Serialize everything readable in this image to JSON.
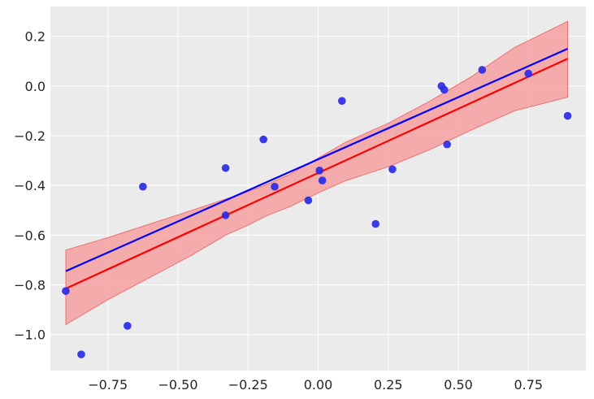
{
  "chart_data": {
    "type": "scatter",
    "title": "",
    "xlabel": "",
    "ylabel": "",
    "xlim": [
      -0.955,
      0.955
    ],
    "ylim": [
      -1.145,
      0.32
    ],
    "grid": true,
    "x_ticks": [
      -0.75,
      -0.5,
      -0.25,
      0.0,
      0.25,
      0.5,
      0.75
    ],
    "x_tick_labels": [
      "−0.75",
      "−0.50",
      "−0.25",
      "0.00",
      "0.25",
      "0.50",
      "0.75"
    ],
    "y_ticks": [
      0.2,
      0.0,
      -0.2,
      -0.4,
      -0.6,
      -0.8,
      -1.0
    ],
    "y_tick_labels": [
      "0.2",
      "0.0",
      "−0.2",
      "−0.4",
      "−0.6",
      "−0.8",
      "−1.0"
    ],
    "series": [
      {
        "kind": "scatter",
        "color": "#2a2ae6",
        "points": [
          [
            -0.9,
            -0.825
          ],
          [
            -0.845,
            -1.08
          ],
          [
            -0.68,
            -0.965
          ],
          [
            -0.625,
            -0.405
          ],
          [
            -0.33,
            -0.33
          ],
          [
            -0.33,
            -0.52
          ],
          [
            -0.195,
            -0.215
          ],
          [
            -0.155,
            -0.405
          ],
          [
            -0.035,
            -0.46
          ],
          [
            0.005,
            -0.34
          ],
          [
            0.015,
            -0.38
          ],
          [
            0.085,
            -0.06
          ],
          [
            0.205,
            -0.555
          ],
          [
            0.265,
            -0.335
          ],
          [
            0.44,
            0.0
          ],
          [
            0.45,
            -0.015
          ],
          [
            0.46,
            -0.235
          ],
          [
            0.585,
            0.065
          ],
          [
            0.75,
            0.05
          ],
          [
            0.89,
            -0.12
          ]
        ]
      },
      {
        "kind": "line",
        "color": "#0000ff",
        "points": [
          [
            -0.9,
            -0.745
          ],
          [
            0.89,
            0.15
          ]
        ]
      },
      {
        "kind": "line",
        "color": "#ff0000",
        "points": [
          [
            -0.9,
            -0.815
          ],
          [
            0.89,
            0.11
          ]
        ]
      },
      {
        "kind": "band",
        "color": "#f4a0a0",
        "edge_color": "#f07070",
        "x": [
          -0.9,
          -0.75,
          -0.6,
          -0.45,
          -0.33,
          -0.25,
          -0.18,
          -0.1,
          0.0,
          0.1,
          0.25,
          0.4,
          0.55,
          0.7,
          0.89
        ],
        "upper": [
          -0.66,
          -0.61,
          -0.555,
          -0.5,
          -0.455,
          -0.425,
          -0.395,
          -0.355,
          -0.29,
          -0.225,
          -0.15,
          -0.06,
          0.04,
          0.155,
          0.26
        ],
        "lower": [
          -0.96,
          -0.86,
          -0.77,
          -0.68,
          -0.6,
          -0.56,
          -0.52,
          -0.485,
          -0.43,
          -0.38,
          -0.325,
          -0.255,
          -0.175,
          -0.1,
          -0.045
        ]
      }
    ]
  },
  "colors": {
    "plot_background": "#ebebeb",
    "grid": "#ffffff",
    "scatter": "#2a2ae6",
    "blue_line": "#0000ff",
    "red_line": "#ff0000",
    "band_fill": "#f4a0a0"
  }
}
